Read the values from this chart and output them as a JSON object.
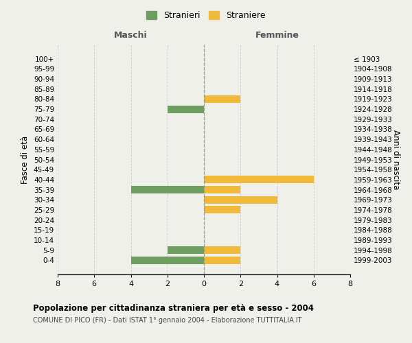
{
  "age_groups": [
    "100+",
    "95-99",
    "90-94",
    "85-89",
    "80-84",
    "75-79",
    "70-74",
    "65-69",
    "60-64",
    "55-59",
    "50-54",
    "45-49",
    "40-44",
    "35-39",
    "30-34",
    "25-29",
    "20-24",
    "15-19",
    "10-14",
    "5-9",
    "0-4"
  ],
  "birth_years": [
    "≤ 1903",
    "1904-1908",
    "1909-1913",
    "1914-1918",
    "1919-1923",
    "1924-1928",
    "1929-1933",
    "1934-1938",
    "1939-1943",
    "1944-1948",
    "1949-1953",
    "1954-1958",
    "1959-1963",
    "1964-1968",
    "1969-1973",
    "1974-1978",
    "1979-1983",
    "1984-1988",
    "1989-1993",
    "1994-1998",
    "1999-2003"
  ],
  "maschi": [
    0,
    0,
    0,
    0,
    0,
    2,
    0,
    0,
    0,
    0,
    0,
    0,
    0,
    4,
    0,
    0,
    0,
    0,
    0,
    2,
    4
  ],
  "femmine": [
    0,
    0,
    0,
    0,
    2,
    0,
    0,
    0,
    0,
    0,
    0,
    0,
    6,
    2,
    4,
    2,
    0,
    0,
    0,
    2,
    2
  ],
  "color_maschi": "#6e9e5f",
  "color_femmine": "#f0b93a",
  "background_color": "#f0f0eb",
  "grid_color": "#cccccc",
  "title": "Popolazione per cittadinanza straniera per età e sesso - 2004",
  "subtitle": "COMUNE DI PICO (FR) - Dati ISTAT 1° gennaio 2004 - Elaborazione TUTTITALIA.IT",
  "ylabel_left": "Fasce di età",
  "ylabel_right": "Anni di nascita",
  "xlabel_left": "Maschi",
  "xlabel_right": "Femmine",
  "legend_maschi": "Stranieri",
  "legend_femmine": "Straniere",
  "xlim": 8,
  "bar_height": 0.75
}
